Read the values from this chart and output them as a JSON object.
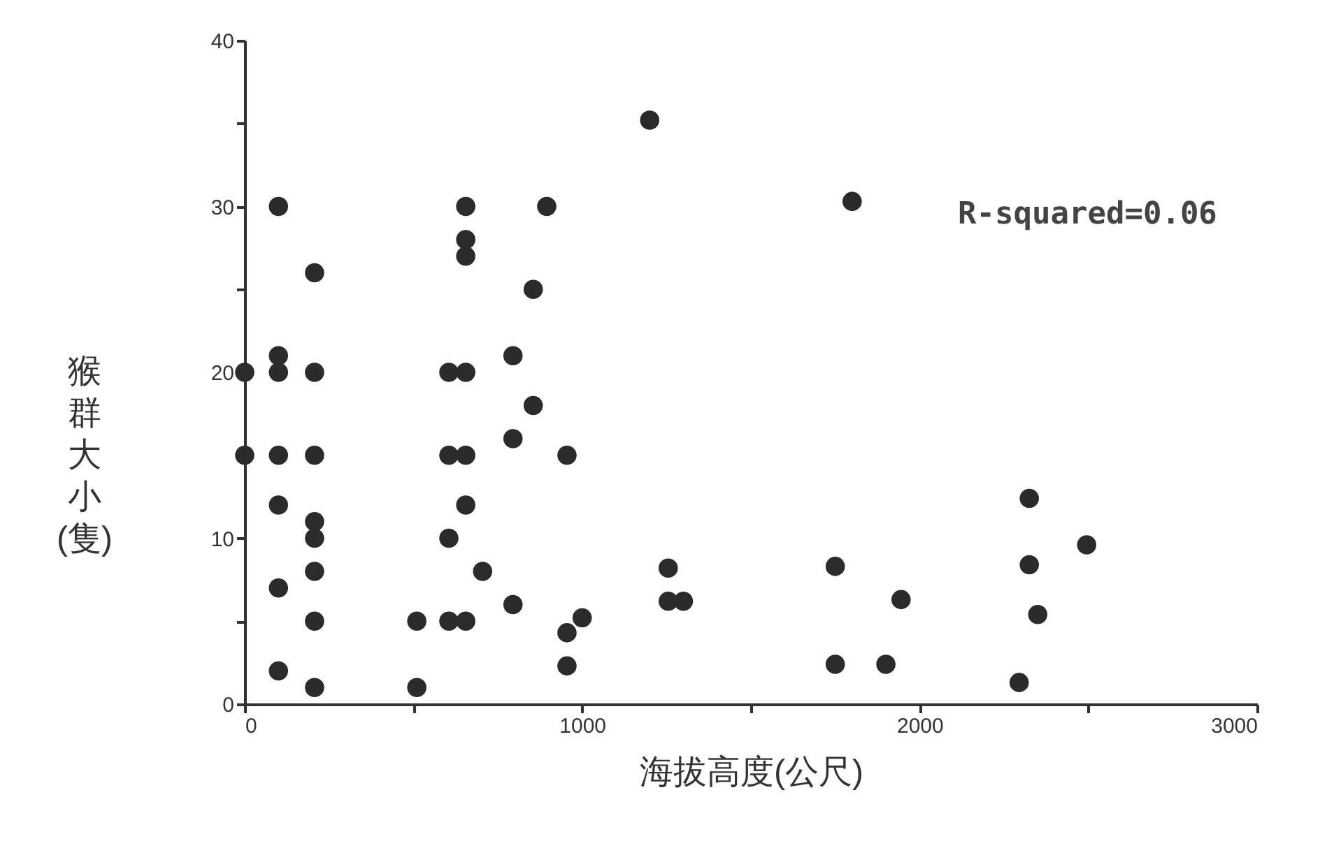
{
  "chart_data": {
    "type": "scatter",
    "xlabel": "海拔高度(公尺)",
    "ylabel": "猴群大小(隻)",
    "annotations": [
      "R-squared=0.06"
    ],
    "xlim": [
      0,
      3000
    ],
    "ylim": [
      0,
      40
    ],
    "xticks": [
      0,
      {
        "value": 500,
        "label": null
      },
      1000,
      {
        "value": 1500,
        "label": null
      },
      2000,
      {
        "value": 2500,
        "label": null
      },
      3000
    ],
    "yticks": [
      0,
      {
        "value": 5,
        "label": null
      },
      10,
      {
        "value": 15,
        "label": null
      },
      20,
      {
        "value": 25,
        "label": null
      },
      30,
      {
        "value": 35,
        "label": null
      },
      40
    ],
    "grid": false,
    "marker": "circle",
    "series": [
      {
        "color": "#2b2b2b",
        "x": [
          0,
          0,
          100,
          100,
          100,
          100,
          100,
          100,
          100,
          207,
          207,
          207,
          207,
          207,
          207,
          207,
          207,
          510,
          510,
          605,
          605,
          605,
          605,
          655,
          655,
          655,
          655,
          655,
          655,
          655,
          705,
          795,
          795,
          795,
          855,
          855,
          895,
          955,
          955,
          955,
          1000,
          1200,
          1255,
          1255,
          1300,
          1750,
          1750,
          1800,
          1900,
          1945,
          2295,
          2325,
          2325,
          2350,
          2495
        ],
        "values": [
          20,
          15,
          30,
          21,
          20,
          15,
          12,
          7,
          2,
          26,
          20,
          15,
          11,
          10,
          8,
          5,
          1,
          5,
          1,
          20,
          15,
          10,
          5,
          30,
          28,
          27,
          20,
          15,
          12,
          5,
          8,
          21,
          16,
          6,
          25,
          18,
          30,
          15,
          4.3,
          2.3,
          5.2,
          35.2,
          8.2,
          6.2,
          6.2,
          8.3,
          2.4,
          30.3,
          2.4,
          6.3,
          1.3,
          12.4,
          8.4,
          5.4,
          9.6
        ]
      }
    ]
  }
}
